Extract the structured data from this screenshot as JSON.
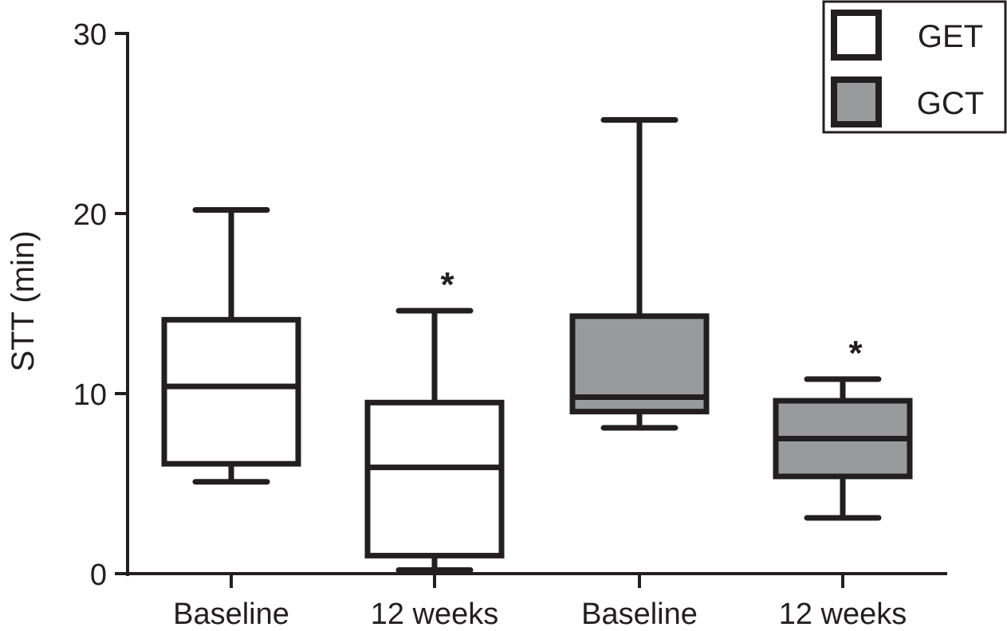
{
  "chart_data": {
    "type": "box",
    "title": "",
    "xlabel": "",
    "ylabel": "STT (min)",
    "ylim": [
      0,
      30
    ],
    "yticks": [
      "0",
      "10",
      "20",
      "30"
    ],
    "categories": [
      "Baseline",
      "12 weeks",
      "Baseline",
      "12 weeks"
    ],
    "series": [
      {
        "name": "GET",
        "fill": "#ffffff",
        "boxes": [
          {
            "category": "Baseline",
            "min": 5.1,
            "q1": 6.1,
            "median": 10.4,
            "q3": 14.1,
            "max": 20.2,
            "marker": ""
          },
          {
            "category": "12 weeks",
            "min": 0.2,
            "q1": 1.0,
            "median": 5.9,
            "q3": 9.5,
            "max": 14.6,
            "marker": "*"
          }
        ]
      },
      {
        "name": "GCT",
        "fill": "#999a9c",
        "boxes": [
          {
            "category": "Baseline",
            "min": 8.1,
            "q1": 9.0,
            "median": 9.8,
            "q3": 14.3,
            "max": 25.2,
            "marker": ""
          },
          {
            "category": "12 weeks",
            "min": 3.1,
            "q1": 5.4,
            "median": 7.5,
            "q3": 9.6,
            "max": 10.8,
            "marker": "*"
          }
        ]
      }
    ],
    "legend": {
      "position": "top-right",
      "entries": [
        {
          "label": "GET",
          "fill": "#ffffff"
        },
        {
          "label": "GCT",
          "fill": "#999a9c"
        }
      ]
    },
    "grid": false,
    "colors": {
      "stroke": "#231f20",
      "background": "#ffffff"
    }
  }
}
